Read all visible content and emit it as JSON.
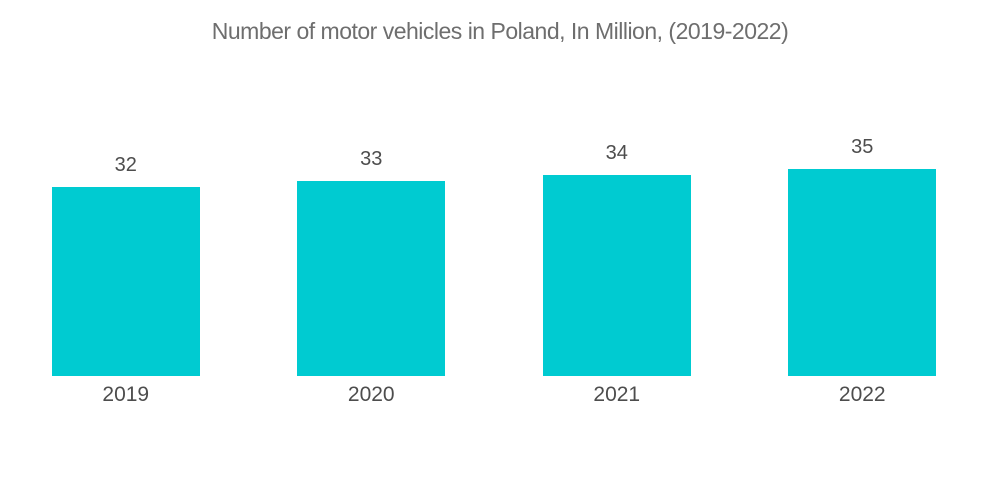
{
  "title": "Number of motor vehicles in Poland, In Million, (2019-2022)",
  "colors": {
    "bar": "#00CBD1",
    "title_text": "#6E6E6E",
    "label_text": "#4D4D4D",
    "background": "#FFFFFF"
  },
  "chart_data": {
    "type": "bar",
    "title": "Number of motor vehicles in Poland, In Million, (2019-2022)",
    "categories": [
      "2019",
      "2020",
      "2021",
      "2022"
    ],
    "values": [
      32,
      33,
      34,
      35
    ],
    "value_labels": [
      "32",
      "33",
      "34",
      "35"
    ],
    "xlabel": "",
    "ylabel": "",
    "ylim": [
      0,
      35
    ],
    "grid": false,
    "legend": false,
    "axes_shown": false,
    "bar_color": "#00CBD1"
  }
}
